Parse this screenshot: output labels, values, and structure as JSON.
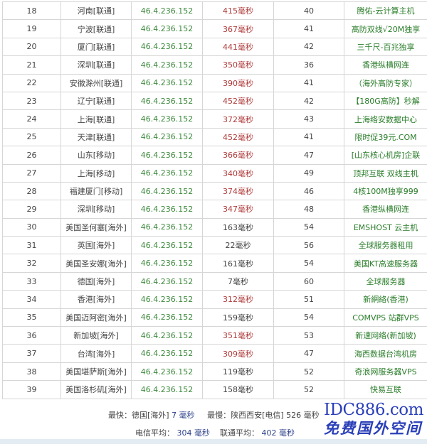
{
  "colors": {
    "ip": "#3d8a3d",
    "slow": "#b03a3a",
    "link": "#2a7d2a",
    "watermark": "#2a3fb8"
  },
  "rows": [
    {
      "no": "18",
      "loc": "河南[联通]",
      "ip": "46.4.236.152",
      "ms": "415毫秒",
      "slow": true,
      "hops": "40",
      "link": "腾佑-云计算主机"
    },
    {
      "no": "19",
      "loc": "宁波[联通]",
      "ip": "46.4.236.152",
      "ms": "367毫秒",
      "slow": true,
      "hops": "41",
      "link": "高防双线√20M独享"
    },
    {
      "no": "20",
      "loc": "厦门[联通]",
      "ip": "46.4.236.152",
      "ms": "441毫秒",
      "slow": true,
      "hops": "42",
      "link": "三千尺-百兆独享"
    },
    {
      "no": "21",
      "loc": "深圳[联通]",
      "ip": "46.4.236.152",
      "ms": "350毫秒",
      "slow": true,
      "hops": "36",
      "link": "香港纵横网连"
    },
    {
      "no": "22",
      "loc": "安徽滁州[联通]",
      "ip": "46.4.236.152",
      "ms": "390毫秒",
      "slow": true,
      "hops": "41",
      "link": "（海外高防专家）"
    },
    {
      "no": "23",
      "loc": "辽宁[联通]",
      "ip": "46.4.236.152",
      "ms": "452毫秒",
      "slow": true,
      "hops": "42",
      "link": "【180G高防】秒解"
    },
    {
      "no": "24",
      "loc": "上海[联通]",
      "ip": "46.4.236.152",
      "ms": "372毫秒",
      "slow": true,
      "hops": "43",
      "link": "上海络安数据中心"
    },
    {
      "no": "25",
      "loc": "天津[联通]",
      "ip": "46.4.236.152",
      "ms": "452毫秒",
      "slow": true,
      "hops": "41",
      "link": "限时促39元.COM"
    },
    {
      "no": "26",
      "loc": "山东[移动]",
      "ip": "46.4.236.152",
      "ms": "366毫秒",
      "slow": true,
      "hops": "47",
      "link": "[山东核心机房]企联"
    },
    {
      "no": "27",
      "loc": "上海[移动]",
      "ip": "46.4.236.152",
      "ms": "340毫秒",
      "slow": true,
      "hops": "49",
      "link": "顶邦互联 双线主机"
    },
    {
      "no": "28",
      "loc": "福建厦门[移动]",
      "ip": "46.4.236.152",
      "ms": "374毫秒",
      "slow": true,
      "hops": "46",
      "link": "4核100M独享999"
    },
    {
      "no": "29",
      "loc": "深圳[移动]",
      "ip": "46.4.236.152",
      "ms": "347毫秒",
      "slow": true,
      "hops": "48",
      "link": "香港纵横网连"
    },
    {
      "no": "30",
      "loc": "美国圣何塞[海外]",
      "ip": "46.4.236.152",
      "ms": "163毫秒",
      "slow": false,
      "hops": "54",
      "link": "EMSHOST 云主机"
    },
    {
      "no": "31",
      "loc": "英国[海外]",
      "ip": "46.4.236.152",
      "ms": "22毫秒",
      "slow": false,
      "hops": "56",
      "link": "全球服务器租用"
    },
    {
      "no": "32",
      "loc": "美国圣安娜[海外]",
      "ip": "46.4.236.152",
      "ms": "161毫秒",
      "slow": false,
      "hops": "54",
      "link": "美国KT高速服务器"
    },
    {
      "no": "33",
      "loc": "德国[海外]",
      "ip": "46.4.236.152",
      "ms": "7毫秒",
      "slow": false,
      "hops": "60",
      "link": "全球服务器"
    },
    {
      "no": "34",
      "loc": "香港[海外]",
      "ip": "46.4.236.152",
      "ms": "312毫秒",
      "slow": true,
      "hops": "51",
      "link": "新網絡(香港)"
    },
    {
      "no": "35",
      "loc": "美国迈阿密[海外]",
      "ip": "46.4.236.152",
      "ms": "159毫秒",
      "slow": false,
      "hops": "54",
      "link": "COMVPS 站群VPS"
    },
    {
      "no": "36",
      "loc": "新加坡[海外]",
      "ip": "46.4.236.152",
      "ms": "351毫秒",
      "slow": true,
      "hops": "53",
      "link": "新速网络(新加坡)"
    },
    {
      "no": "37",
      "loc": "台湾[海外]",
      "ip": "46.4.236.152",
      "ms": "309毫秒",
      "slow": true,
      "hops": "47",
      "link": "海西数据台湾机房"
    },
    {
      "no": "38",
      "loc": "美国堪萨斯[海外]",
      "ip": "46.4.236.152",
      "ms": "119毫秒",
      "slow": false,
      "hops": "52",
      "link": "奇浪网服务器VPS"
    },
    {
      "no": "39",
      "loc": "美国洛杉矶[海外]",
      "ip": "46.4.236.152",
      "ms": "158毫秒",
      "slow": false,
      "hops": "52",
      "link": "快易互联"
    }
  ],
  "summary": {
    "fastest_label": "最快：",
    "fastest_loc": "德国[海外]",
    "fastest_value": "7 毫秒",
    "slowest_label": "最慢：",
    "slowest_loc": "陕西西安[电信]",
    "slowest_value": "526 毫秒",
    "telecom_avg_label": "电信平均：",
    "telecom_avg_value": "304 毫秒",
    "unicom_avg_label": "联通平均：",
    "unicom_avg_value": "402 毫秒"
  },
  "watermark": {
    "line1": "IDC886.com",
    "line2": "免费国外空间"
  }
}
